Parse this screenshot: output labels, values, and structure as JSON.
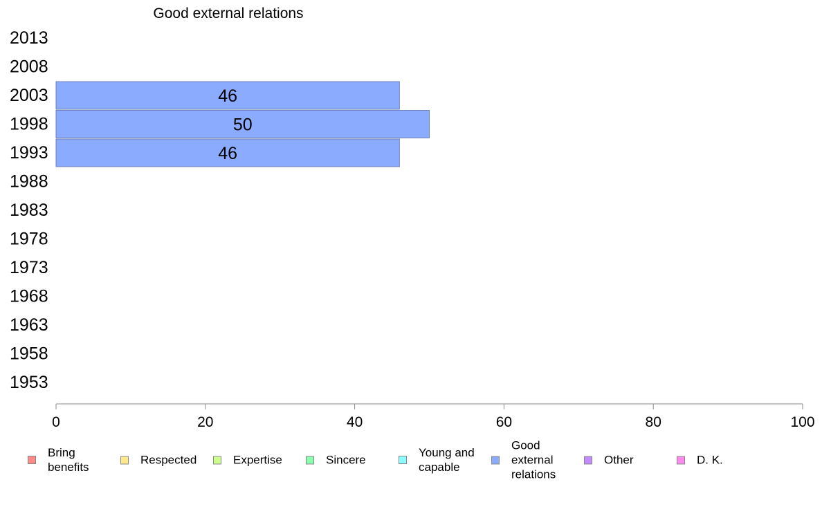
{
  "chart_data": {
    "type": "bar",
    "orientation": "horizontal",
    "title": "Good external relations",
    "categories": [
      "2013",
      "2008",
      "2003",
      "1998",
      "1993",
      "1988",
      "1983",
      "1978",
      "1973",
      "1968",
      "1963",
      "1958",
      "1953"
    ],
    "series": [
      {
        "name": "Good external relations",
        "color": "#8aabff",
        "values": [
          null,
          null,
          46,
          50,
          46,
          null,
          null,
          null,
          null,
          null,
          null,
          null,
          null
        ]
      }
    ],
    "xlim": [
      0,
      100
    ],
    "xticks": [
      0,
      20,
      40,
      60,
      80,
      100
    ],
    "grid": false,
    "legend_position": "bottom"
  },
  "legend": [
    {
      "label": "Bring\nbenefits",
      "color": "#ff8a8a"
    },
    {
      "label": "Respected",
      "color": "#ffe88a"
    },
    {
      "label": "Expertise",
      "color": "#ccff8a"
    },
    {
      "label": "Sincere",
      "color": "#8affae"
    },
    {
      "label": "Young and\ncapable",
      "color": "#8affff"
    },
    {
      "label": "Good\nexternal\nrelations",
      "color": "#8aabff"
    },
    {
      "label": "Other",
      "color": "#c48aff"
    },
    {
      "label": "D. K.",
      "color": "#ff8aee"
    }
  ]
}
